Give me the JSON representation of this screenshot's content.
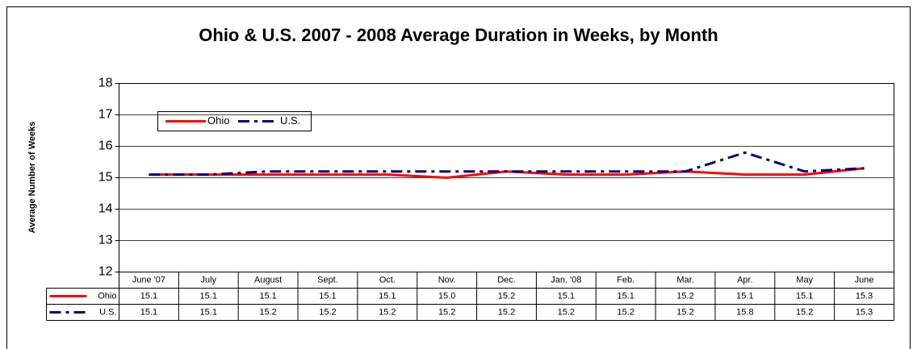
{
  "chart_data": {
    "type": "line",
    "title": "Ohio & U.S. 2007 - 2008 Average Duration in Weeks, by Month",
    "y_label": "Average Number of Weeks",
    "categories": [
      "June '07",
      "July",
      "August",
      "Sept.",
      "Oct.",
      "Nov.",
      "Dec.",
      "Jan. '08",
      "Feb.",
      "Mar.",
      "Apr.",
      "May",
      "June"
    ],
    "series": [
      {
        "name": "Ohio",
        "color": "#ff0000",
        "dash": "solid",
        "values": [
          15.1,
          15.1,
          15.1,
          15.1,
          15.1,
          15.0,
          15.2,
          15.1,
          15.1,
          15.2,
          15.1,
          15.1,
          15.3
        ],
        "value_labels": [
          "15.1",
          "15.1",
          "15.1",
          "15.1",
          "15.1",
          "15.0",
          "15.2",
          "15.1",
          "15.1",
          "15.2",
          "15.1",
          "15.1",
          "15.3"
        ]
      },
      {
        "name": "U.S.",
        "color": "#000080",
        "dash": "dashed",
        "values": [
          15.1,
          15.1,
          15.2,
          15.2,
          15.2,
          15.2,
          15.2,
          15.2,
          15.2,
          15.2,
          15.8,
          15.2,
          15.3
        ],
        "value_labels": [
          "15.1",
          "15.1",
          "15.2",
          "15.2",
          "15.2",
          "15.2",
          "15.2",
          "15.2",
          "15.2",
          "15.2",
          "15.8",
          "15.2",
          "15.3"
        ]
      }
    ],
    "ylim": [
      12,
      18
    ],
    "yticks": [
      12,
      13,
      14,
      15,
      16,
      17,
      18
    ],
    "grid": true,
    "legend": "top-left",
    "data_table": true
  }
}
